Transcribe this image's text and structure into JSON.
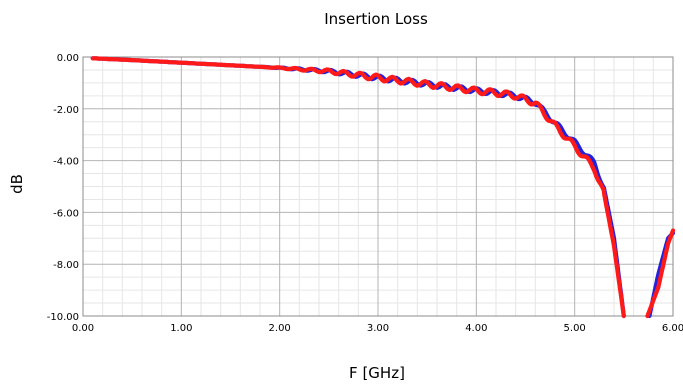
{
  "chart_data": {
    "type": "line",
    "title": "Insertion Loss",
    "xlabel": "F [GHz]",
    "ylabel": "dB",
    "xlim": [
      0,
      6
    ],
    "ylim": [
      -10,
      0
    ],
    "x_ticks": [
      0,
      1,
      2,
      3,
      4,
      5,
      6
    ],
    "x_tick_labels": [
      "0.00",
      "1.00",
      "2.00",
      "3.00",
      "4.00",
      "5.00",
      "6.00"
    ],
    "y_ticks": [
      0,
      -2,
      -4,
      -6,
      -8,
      -10
    ],
    "y_tick_labels": [
      "0.00",
      "-2.00",
      "-4.00",
      "-6.00",
      "-8.00",
      "-10.00"
    ],
    "grid": true,
    "series": [
      {
        "color": "#2222dd",
        "points": [
          [
            0.1,
            -0.05
          ],
          [
            0.5,
            -0.12
          ],
          [
            1.0,
            -0.22
          ],
          [
            1.5,
            -0.32
          ],
          [
            2.0,
            -0.42
          ],
          [
            2.5,
            -0.55
          ],
          [
            3.0,
            -0.8
          ],
          [
            3.5,
            -1.05
          ],
          [
            4.0,
            -1.3
          ],
          [
            4.2,
            -1.38
          ],
          [
            4.4,
            -1.5
          ],
          [
            4.6,
            -1.75
          ],
          [
            4.8,
            -2.55
          ],
          [
            5.0,
            -3.3
          ],
          [
            5.2,
            -4.1
          ],
          [
            5.3,
            -5.1
          ],
          [
            5.4,
            -7.0
          ],
          [
            5.5,
            -10.0
          ],
          [
            5.76,
            -10.0
          ],
          [
            5.85,
            -8.4
          ],
          [
            5.95,
            -7.0
          ],
          [
            6.0,
            -6.8
          ]
        ]
      },
      {
        "color": "#ff1a1a",
        "points": [
          [
            0.1,
            -0.05
          ],
          [
            0.5,
            -0.12
          ],
          [
            1.0,
            -0.22
          ],
          [
            1.5,
            -0.32
          ],
          [
            2.0,
            -0.42
          ],
          [
            2.5,
            -0.55
          ],
          [
            3.0,
            -0.8
          ],
          [
            3.5,
            -1.05
          ],
          [
            4.0,
            -1.3
          ],
          [
            4.2,
            -1.38
          ],
          [
            4.4,
            -1.5
          ],
          [
            4.6,
            -1.78
          ],
          [
            4.8,
            -2.65
          ],
          [
            5.0,
            -3.45
          ],
          [
            5.2,
            -4.3
          ],
          [
            5.3,
            -5.3
          ],
          [
            5.4,
            -7.3
          ],
          [
            5.5,
            -10.0
          ],
          [
            5.74,
            -10.0
          ],
          [
            5.85,
            -8.9
          ],
          [
            5.95,
            -7.2
          ],
          [
            6.0,
            -6.7
          ]
        ]
      }
    ]
  }
}
